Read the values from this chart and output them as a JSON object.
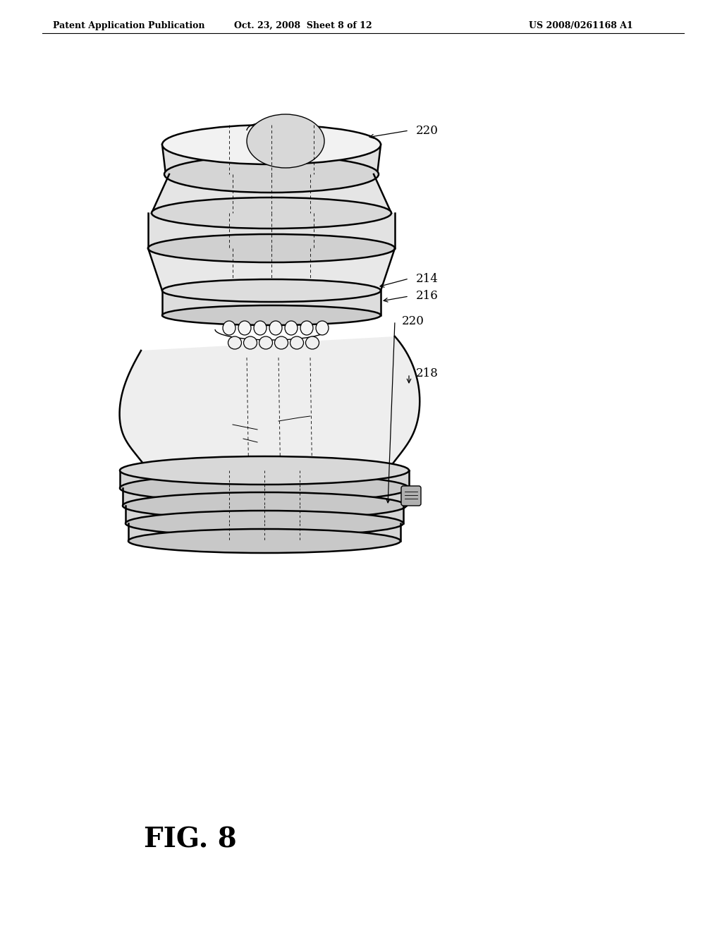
{
  "background_color": "#ffffff",
  "header_left": "Patent Application Publication",
  "header_center": "Oct. 23, 2008  Sheet 8 of 12",
  "header_right": "US 2008/0261168 A1",
  "figure_label": "FIG. 8",
  "title_fontsize": 9,
  "fig_label_fontsize": 28,
  "label_fontsize": 12,
  "line_color": "#000000",
  "bg_color": "#ffffff"
}
